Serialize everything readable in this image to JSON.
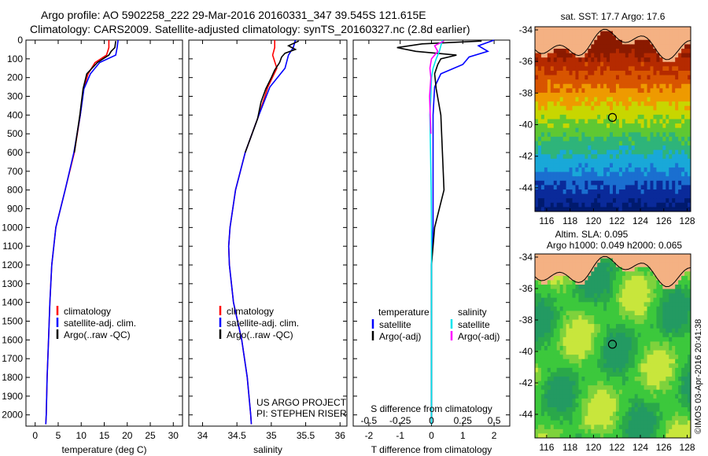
{
  "header": {
    "line1": "Argo profile: AO 5902258_222 29-Mar-2016 20160331_347 39.545S 121.615E",
    "line2": "Climatology: CARS2009. Satellite-adjusted climatology: synTS_20160327.nc (2.8d earlier)"
  },
  "colors": {
    "climatology": "#ff0000",
    "satellite": "#0000ff",
    "argo": "#000000",
    "cyan": "#00e5ee",
    "magenta": "#ff00ff",
    "land": "#f4b183"
  },
  "chart_data": [
    {
      "type": "line",
      "id": "temperature",
      "xlabel": "temperature (deg C)",
      "ylabel": "",
      "xlim": [
        -2,
        32
      ],
      "ylim": [
        2060,
        0
      ],
      "xticks": [
        0,
        5,
        10,
        15,
        20,
        25,
        30
      ],
      "yticks": [
        0,
        100,
        200,
        300,
        400,
        500,
        600,
        700,
        800,
        900,
        1000,
        1100,
        1200,
        1300,
        1400,
        1500,
        1600,
        1700,
        1800,
        1900,
        2000
      ],
      "legend": [
        "climatology",
        "satellite-adj. clim.",
        "Argo(..raw -QC)"
      ],
      "series": [
        {
          "name": "climatology",
          "color": "red",
          "depth": [
            0,
            40,
            80,
            120,
            180,
            260,
            400,
            600,
            800,
            1000,
            1200,
            1400,
            1600,
            1800,
            2000,
            2050
          ],
          "values": [
            16.0,
            16.0,
            15.5,
            13.0,
            11.5,
            10.5,
            9.8,
            8.5,
            6.5,
            4.5,
            3.6,
            3.2,
            2.9,
            2.6,
            2.4,
            2.3
          ]
        },
        {
          "name": "satellite-adj. clim.",
          "color": "blue",
          "depth": [
            0,
            40,
            80,
            120,
            180,
            260,
            400,
            600,
            800,
            1000,
            1200,
            1400,
            1600,
            1800,
            2000,
            2050
          ],
          "values": [
            18.0,
            17.8,
            17.5,
            14.0,
            12.0,
            10.6,
            9.8,
            8.4,
            6.5,
            4.5,
            3.6,
            3.2,
            2.9,
            2.6,
            2.4,
            2.3
          ]
        },
        {
          "name": "Argo(..raw -QC)",
          "color": "black",
          "depth": [
            5,
            40,
            60,
            80,
            120,
            180,
            260,
            400,
            600
          ],
          "values": [
            17.5,
            17.3,
            16.5,
            16.0,
            13.5,
            11.2,
            10.4,
            9.7,
            8.5
          ]
        }
      ],
      "annotations": []
    },
    {
      "type": "line",
      "id": "salinity",
      "xlabel": "salinity",
      "xlim": [
        33.8,
        36.1
      ],
      "ylim": [
        2060,
        0
      ],
      "xticks": [
        34,
        34.5,
        35,
        35.5,
        36
      ],
      "legend": [
        "climatology",
        "satellite-adj. clim.",
        "Argo(..raw -QC)"
      ],
      "series": [
        {
          "name": "climatology",
          "color": "red",
          "depth": [
            0,
            40,
            80,
            150,
            250,
            400,
            600,
            800,
            1000,
            1100,
            1200,
            1400,
            1600,
            1800,
            2000,
            2050
          ],
          "values": [
            35.05,
            35.05,
            35.02,
            35.08,
            34.95,
            34.82,
            34.62,
            34.48,
            34.4,
            34.38,
            34.39,
            34.45,
            34.57,
            34.65,
            34.7,
            34.71
          ]
        },
        {
          "name": "satellite-adj. clim.",
          "color": "blue",
          "depth": [
            0,
            40,
            80,
            150,
            250,
            400,
            600,
            800,
            1000,
            1100,
            1200,
            1400,
            1600,
            1800,
            2000,
            2050
          ],
          "values": [
            35.35,
            35.32,
            35.25,
            35.2,
            34.98,
            34.82,
            34.62,
            34.48,
            34.4,
            34.38,
            34.39,
            34.45,
            34.57,
            34.65,
            34.7,
            34.71
          ]
        },
        {
          "name": "Argo(..raw -QC)",
          "color": "black",
          "depth": [
            5,
            30,
            50,
            70,
            90,
            120,
            160,
            200,
            260,
            330,
            420,
            600
          ],
          "values": [
            35.4,
            35.25,
            35.35,
            35.2,
            35.15,
            35.12,
            35.05,
            35.0,
            34.92,
            34.85,
            34.8,
            34.62
          ]
        }
      ],
      "annotations": [
        "US ARGO PROJECT",
        "PI: STEPHEN RISER"
      ]
    },
    {
      "type": "line",
      "id": "difference",
      "xlabel": "T difference from climatology",
      "xlabel_top": "S difference from climatology",
      "xlim": [
        -2.5,
        2.5
      ],
      "ylim": [
        2060,
        0
      ],
      "xticks": [
        -2,
        -1,
        0,
        1,
        2
      ],
      "xticks_top": [
        "-0.5",
        "-0.25",
        "0",
        "0.25",
        "0.5"
      ],
      "legend_temperature": [
        "temperature",
        "satellite",
        "Argo(-adj)"
      ],
      "legend_salinity": [
        "salinity",
        "satellite",
        "Argo(-adj)"
      ],
      "series": [
        {
          "name": "T satellite",
          "color": "blue",
          "depth": [
            0,
            30,
            60,
            90,
            130,
            180,
            250,
            400,
            600,
            800,
            1000,
            1200,
            1500,
            1800,
            2050
          ],
          "values": [
            2.0,
            1.5,
            1.8,
            1.2,
            1.0,
            0.3,
            0.1,
            0.05,
            0.05,
            0.05,
            0.05,
            0.0,
            0.0,
            0.0,
            0.0
          ]
        },
        {
          "name": "T Argo",
          "color": "black",
          "depth": [
            5,
            20,
            40,
            60,
            80,
            100,
            130,
            180,
            260,
            400,
            600,
            800,
            1000,
            1200,
            1500,
            1800,
            2050
          ],
          "values": [
            1.6,
            -0.3,
            -1.1,
            -0.5,
            0.8,
            0.3,
            0.2,
            0.1,
            0.15,
            0.3,
            0.35,
            0.4,
            0.1,
            0.0,
            0.0,
            0.0,
            0.0
          ]
        },
        {
          "name": "S satellite",
          "color": "cyan",
          "depth": [
            0,
            30,
            60,
            100,
            150,
            200,
            300,
            400,
            600,
            800,
            1000,
            1200,
            1500,
            1800,
            2050
          ],
          "values": [
            0.35,
            0.3,
            0.25,
            0.15,
            0.05,
            0.0,
            -0.02,
            -0.05,
            -0.03,
            -0.01,
            0.0,
            0.0,
            0.0,
            0.0,
            0.0
          ]
        },
        {
          "name": "S Argo",
          "color": "magenta",
          "depth": [
            5,
            30,
            60,
            100,
            150,
            200,
            300,
            400,
            500
          ],
          "values": [
            0.4,
            0.1,
            0.2,
            0.0,
            -0.05,
            -0.02,
            -0.06,
            -0.04,
            -0.02
          ]
        }
      ]
    },
    {
      "type": "heatmap",
      "id": "sst_map",
      "title": "sat. SST: 17.7  Argo: 17.6",
      "xticks": [
        116,
        118,
        120,
        122,
        124,
        126,
        128
      ],
      "yticks": [
        -34,
        -36,
        -38,
        -40,
        -42,
        -44
      ],
      "xlim": [
        115,
        128.3
      ],
      "ylim": [
        -45.5,
        -33.8
      ],
      "argo_position": [
        121.615,
        -39.545
      ]
    },
    {
      "type": "heatmap",
      "id": "sla_map",
      "title_line1": "Altim. SLA: 0.095",
      "title_line2": "Argo h1000: 0.049 h2000: 0.065",
      "xticks": [
        116,
        118,
        120,
        122,
        124,
        126,
        128
      ],
      "yticks": [
        -34,
        -36,
        -38,
        -40,
        -42,
        -44
      ],
      "xlim": [
        115,
        128.3
      ],
      "ylim": [
        -45.5,
        -33.8
      ],
      "argo_position": [
        121.615,
        -39.545
      ]
    }
  ],
  "footer": {
    "credit": "©IMOS 03-Apr-2016 20:41:38"
  }
}
